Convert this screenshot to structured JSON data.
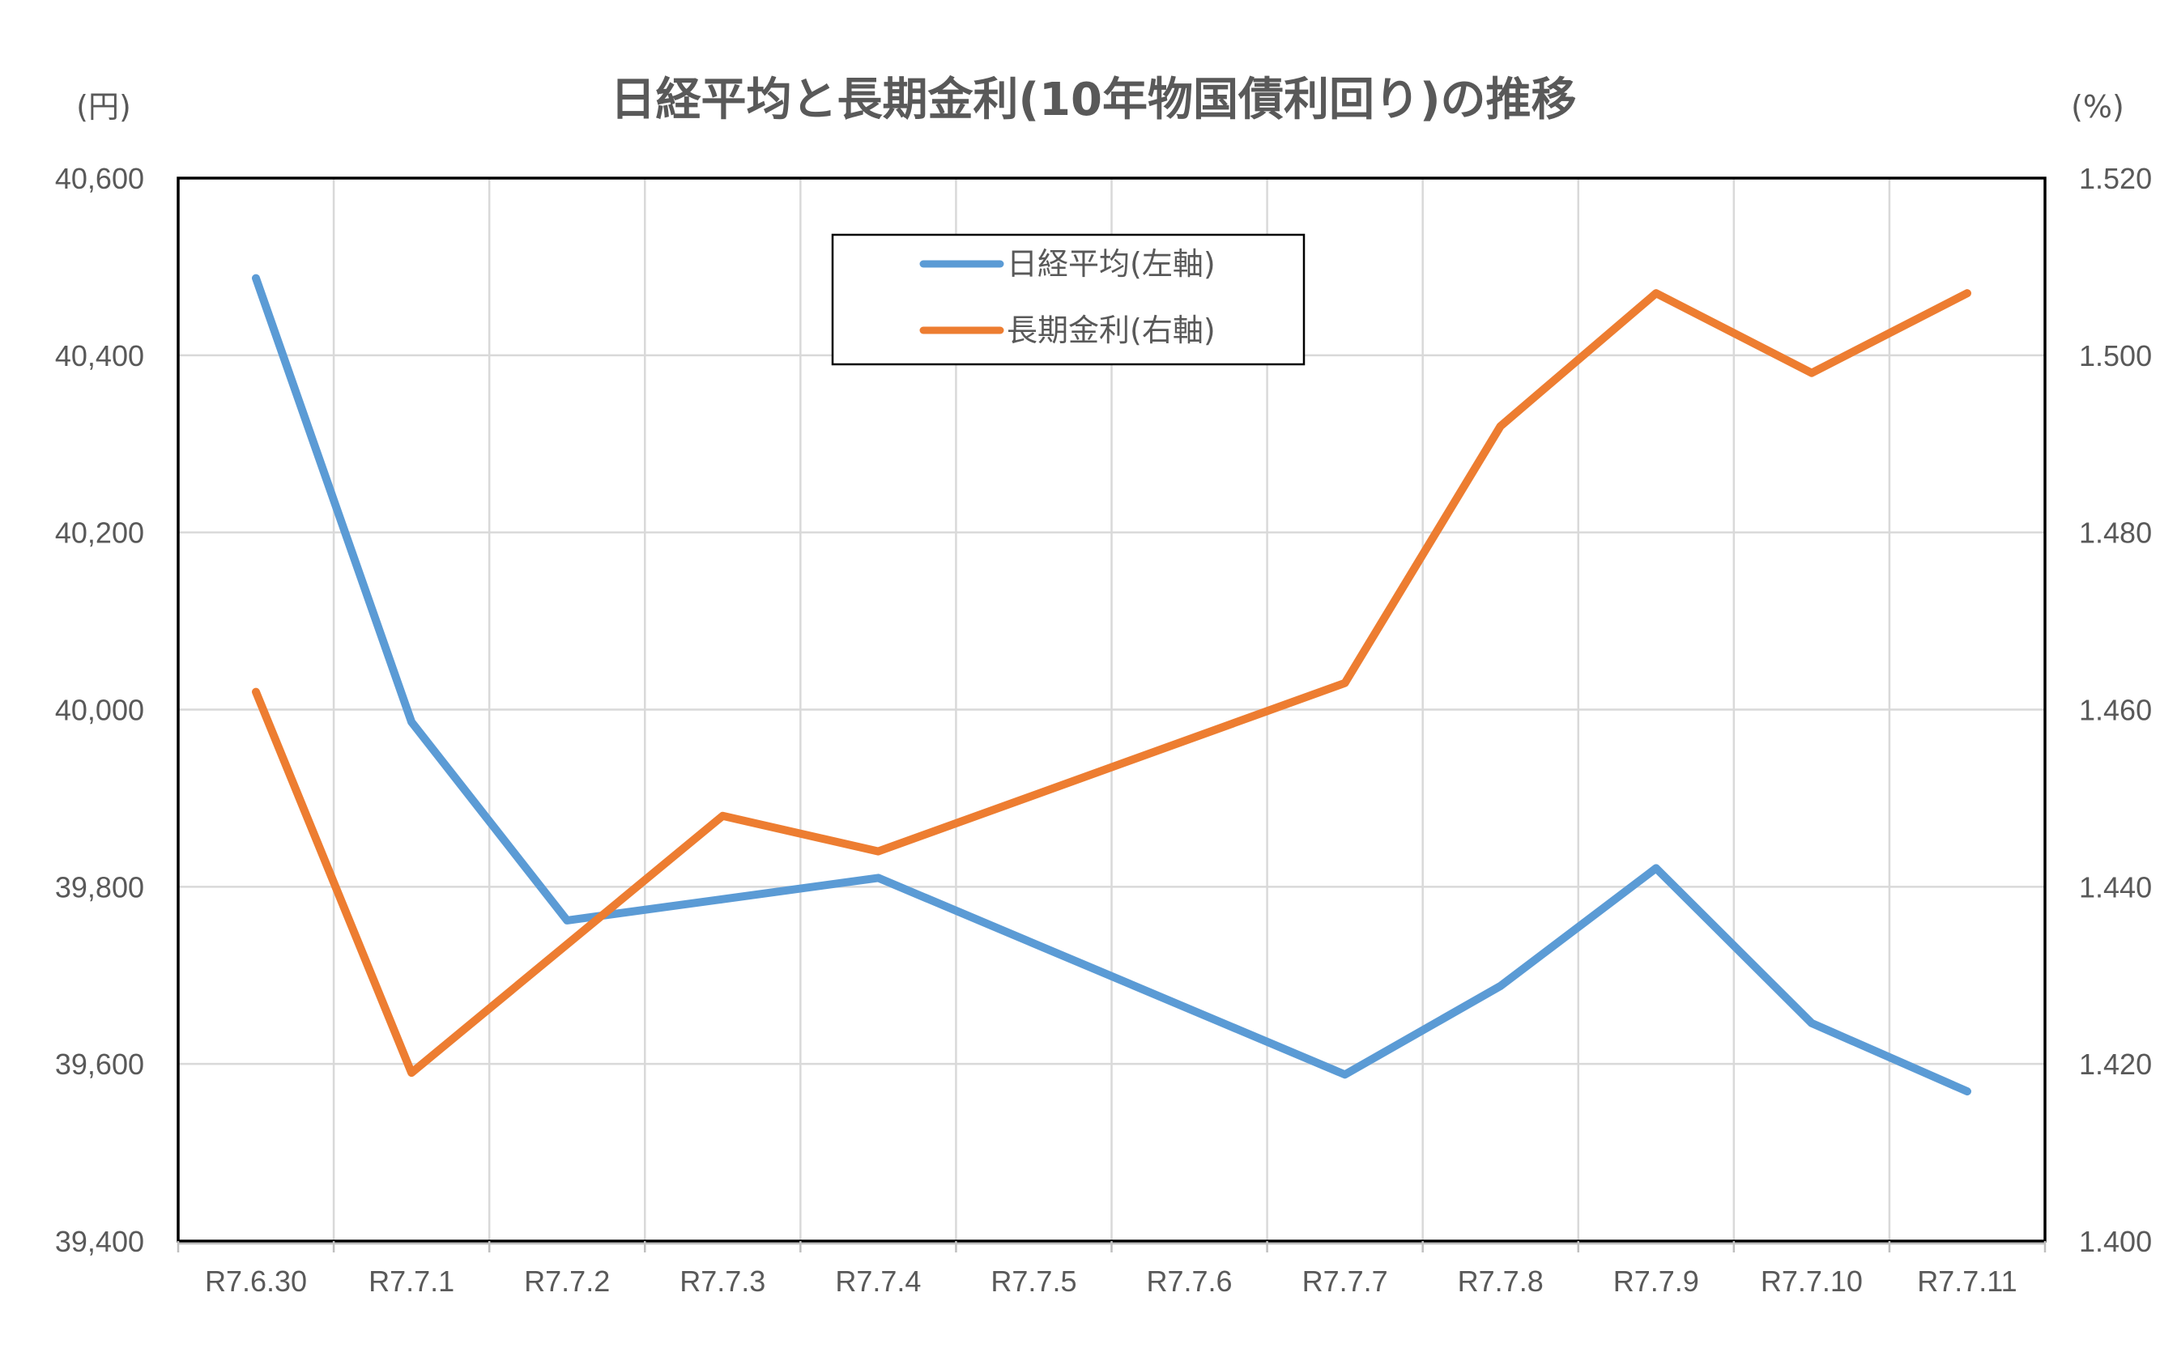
{
  "chart_data": {
    "type": "line",
    "title": "日経平均と長期金利(10年物国債利回り)の推移",
    "left_unit": "(円)",
    "right_unit": "(%)",
    "categories": [
      "R7.6.30",
      "R7.7.1",
      "R7.7.2",
      "R7.7.3",
      "R7.7.4",
      "R7.7.5",
      "R7.7.6",
      "R7.7.7",
      "R7.7.8",
      "R7.7.9",
      "R7.7.10",
      "R7.7.11"
    ],
    "left_axis": {
      "ylim": [
        39400,
        40600
      ],
      "ticks": [
        "39,400",
        "39,600",
        "39,800",
        "40,000",
        "40,200",
        "40,400",
        "40,600"
      ],
      "tick_values": [
        39400,
        39600,
        39800,
        40000,
        40200,
        40400,
        40600
      ]
    },
    "right_axis": {
      "ylim": [
        1.4,
        1.52
      ],
      "ticks": [
        "1.400",
        "1.420",
        "1.440",
        "1.460",
        "1.480",
        "1.500",
        "1.520"
      ],
      "tick_values": [
        1.4,
        1.42,
        1.44,
        1.46,
        1.48,
        1.5,
        1.52
      ]
    },
    "grid": true,
    "legend_position": "top-center",
    "series": [
      {
        "name": "日経平均(左軸)",
        "axis": "left",
        "color": "#5b9bd5",
        "points": [
          {
            "x": "R7.6.30",
            "y": 40487
          },
          {
            "x": "R7.7.1",
            "y": 39986
          },
          {
            "x": "R7.7.2",
            "y": 39762
          },
          {
            "x": "R7.7.3",
            "y": 39786
          },
          {
            "x": "R7.7.4",
            "y": 39810
          },
          {
            "x": "R7.7.7",
            "y": 39588
          },
          {
            "x": "R7.7.8",
            "y": 39688
          },
          {
            "x": "R7.7.9",
            "y": 39821
          },
          {
            "x": "R7.7.10",
            "y": 39646
          },
          {
            "x": "R7.7.11",
            "y": 39569
          }
        ]
      },
      {
        "name": "長期金利(右軸)",
        "axis": "right",
        "color": "#ed7d31",
        "points": [
          {
            "x": "R7.6.30",
            "y": 1.462
          },
          {
            "x": "R7.7.1",
            "y": 1.419
          },
          {
            "x": "R7.7.3",
            "y": 1.448
          },
          {
            "x": "R7.7.4",
            "y": 1.444
          },
          {
            "x": "R7.7.7",
            "y": 1.463
          },
          {
            "x": "R7.7.8",
            "y": 1.492
          },
          {
            "x": "R7.7.9",
            "y": 1.507
          },
          {
            "x": "R7.7.10",
            "y": 1.498
          },
          {
            "x": "R7.7.11",
            "y": 1.507
          }
        ]
      }
    ]
  }
}
